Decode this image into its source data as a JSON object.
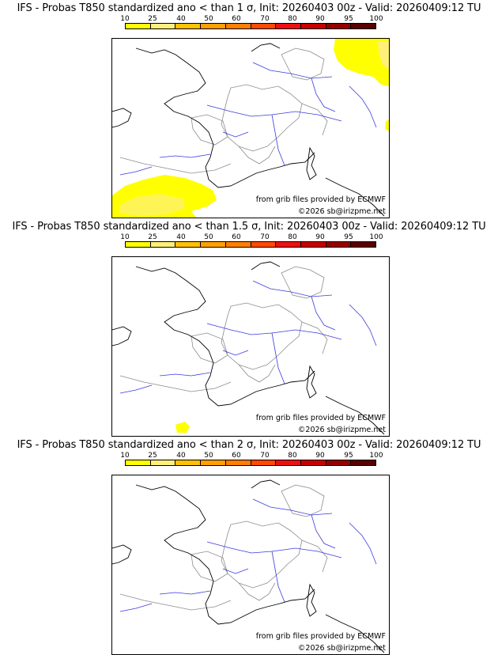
{
  "scale": {
    "ticks": [
      "10",
      "25",
      "40",
      "50",
      "60",
      "70",
      "80",
      "90",
      "95",
      "100"
    ],
    "colors": [
      "#ffff00",
      "#fff07a",
      "#ffc200",
      "#ffa000",
      "#ff7f00",
      "#ff4a00",
      "#ee1010",
      "#c80000",
      "#960000",
      "#5a0000"
    ]
  },
  "panels": [
    {
      "title": "IFS - Probas T850  standardized ano < than 1 σ, Init: 20260403 00z - Valid: 20260409:12 TU",
      "source": "from grib files provided by ECMWF",
      "copyright": "©2026 sb@irizpme.net",
      "probability_areas": [
        {
          "region": "northeast-corner",
          "class": "10-25"
        },
        {
          "region": "southwest-spain",
          "class": "10-25"
        },
        {
          "region": "east-edge",
          "class": "10-25"
        }
      ]
    },
    {
      "title": "IFS - Probas T850  standardized ano < than 1.5 σ, Init: 20260403 00z - Valid: 20260409:12 TU",
      "source": "from grib files provided by ECMWF",
      "copyright": "©2026 sb@irizpme.net",
      "probability_areas": [
        {
          "region": "southwest-spain",
          "class": "10-25"
        }
      ]
    },
    {
      "title": "IFS - Probas T850  standardized ano < than 2 σ, Init: 20260403 00z - Valid: 20260409:12 TU",
      "source": "from grib files provided by ECMWF",
      "copyright": "©2026 sb@irizpme.net",
      "probability_areas": []
    }
  ]
}
